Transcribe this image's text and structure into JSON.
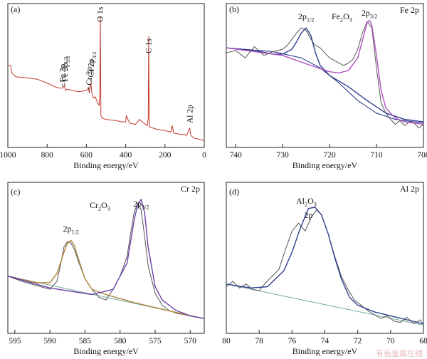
{
  "chart_data": [
    {
      "type": "line",
      "panel": "(a)",
      "xlabel": "Binding energy/eV",
      "xlim": [
        1000,
        0
      ],
      "xticks": [
        1000,
        800,
        600,
        400,
        200,
        0
      ],
      "grid": false,
      "color": "#c0392b",
      "series": [
        {
          "x": [
            1000,
            985,
            980,
            960,
            900,
            850,
            800,
            760,
            740,
            720,
            712,
            706,
            700,
            640,
            600,
            590,
            585,
            577,
            572,
            565,
            555,
            545,
            535,
            532,
            529,
            526,
            520,
            500,
            450,
            420,
            400,
            397,
            380,
            350,
            330,
            300,
            290,
            285,
            283,
            280,
            260,
            240,
            200,
            170,
            163,
            155,
            120,
            100,
            90,
            74,
            68,
            50,
            20,
            0
          ],
          "y": [
            0.62,
            0.62,
            0.56,
            0.53,
            0.52,
            0.51,
            0.48,
            0.45,
            0.44,
            0.44,
            0.46,
            0.42,
            0.43,
            0.41,
            0.42,
            0.44,
            0.4,
            0.48,
            0.4,
            0.36,
            0.37,
            0.33,
            0.3,
            0.4,
            1.0,
            0.22,
            0.2,
            0.19,
            0.18,
            0.17,
            0.17,
            0.22,
            0.16,
            0.15,
            0.19,
            0.15,
            0.14,
            0.2,
            0.85,
            0.13,
            0.12,
            0.11,
            0.1,
            0.09,
            0.14,
            0.08,
            0.07,
            0.07,
            0.06,
            0.12,
            0.06,
            0.04,
            0.03,
            0.02
          ]
        }
      ],
      "annotations": [
        {
          "label": "Fe 2p1/2",
          "main": "Fe 2p",
          "sub": "1/2",
          "x": 722
        },
        {
          "label": "Fe 2p3/2",
          "main": "Fe 2p",
          "sub": "3/2",
          "x": 710
        },
        {
          "label": "Cr 2p1/2",
          "main": "Cr 2p",
          "sub": "1/2",
          "x": 587
        },
        {
          "label": "Cr 2p3/2",
          "main": "Cr 2p",
          "sub": "3/2",
          "x": 577
        },
        {
          "label": "O 1s",
          "x": 531
        },
        {
          "label": "C 1s",
          "x": 285
        },
        {
          "label": "Al 2p",
          "x": 74
        }
      ]
    },
    {
      "type": "line",
      "panel": "(b)",
      "title": "Fe 2p",
      "xlabel": "Binding energy/eV",
      "xlim": [
        742,
        700
      ],
      "xticks": [
        740,
        730,
        720,
        710,
        700
      ],
      "grid": false,
      "compound": {
        "main": "Fe",
        "sub": "2",
        "tail": "O",
        "sub2": "3"
      },
      "peak_labels": [
        {
          "main": "2p",
          "sub": "1/2",
          "x": 725
        },
        {
          "main": "2p",
          "sub": "3/2",
          "x": 711.5
        }
      ],
      "series": [
        {
          "role": "raw",
          "color": "#555555",
          "x": [
            742,
            740,
            738,
            736,
            734,
            732,
            730,
            729,
            728,
            727,
            726,
            725,
            724,
            723,
            722,
            721,
            720,
            719,
            718,
            717,
            716,
            715,
            714,
            713,
            712,
            711,
            710,
            709,
            708,
            707,
            706,
            705,
            704,
            703,
            702,
            701,
            700
          ],
          "y": [
            0.72,
            0.74,
            0.68,
            0.77,
            0.7,
            0.73,
            0.75,
            0.78,
            0.83,
            0.88,
            0.92,
            0.9,
            0.83,
            0.78,
            0.76,
            0.72,
            0.68,
            0.66,
            0.64,
            0.62,
            0.64,
            0.67,
            0.75,
            0.88,
            0.97,
            0.92,
            0.6,
            0.32,
            0.24,
            0.19,
            0.15,
            0.18,
            0.14,
            0.17,
            0.16,
            0.12,
            0.15
          ]
        },
        {
          "role": "fit",
          "name": "2p1/2",
          "color": "#2e3f8f",
          "x": [
            742,
            736,
            732,
            730,
            728,
            727,
            726,
            725,
            724,
            723,
            722,
            720,
            716,
            712,
            708,
            704,
            700
          ],
          "y": [
            0.76,
            0.74,
            0.71,
            0.71,
            0.75,
            0.81,
            0.88,
            0.92,
            0.86,
            0.72,
            0.62,
            0.54,
            0.45,
            0.34,
            0.24,
            0.19,
            0.17
          ]
        },
        {
          "role": "fit",
          "name": "2p3/2",
          "color": "#b050c0",
          "x": [
            742,
            730,
            724,
            720,
            718,
            716,
            714,
            713,
            712,
            711.5,
            711,
            710,
            709,
            708,
            706,
            704,
            700
          ],
          "y": [
            0.76,
            0.7,
            0.62,
            0.57,
            0.56,
            0.58,
            0.68,
            0.82,
            0.96,
            0.98,
            0.94,
            0.7,
            0.42,
            0.28,
            0.2,
            0.17,
            0.15
          ]
        },
        {
          "role": "baseline",
          "color": "#2e3f8f",
          "x": [
            742,
            732,
            726,
            722,
            718,
            714,
            710,
            706,
            702,
            700
          ],
          "y": [
            0.76,
            0.73,
            0.68,
            0.6,
            0.48,
            0.34,
            0.24,
            0.19,
            0.17,
            0.16
          ]
        }
      ]
    },
    {
      "type": "line",
      "panel": "(c)",
      "title": "Cr 2p",
      "xlabel": "Binding energy/eV",
      "xlim": [
        596,
        568
      ],
      "xticks": [
        595,
        590,
        585,
        580,
        575,
        570
      ],
      "grid": false,
      "compound": {
        "main": "Cr",
        "sub": "2",
        "tail": "O",
        "sub2": "3"
      },
      "peak_labels": [
        {
          "main": "2p",
          "sub": "1/2",
          "x": 587
        },
        {
          "main": "2p",
          "sub": "3/2",
          "x": 577
        }
      ],
      "series": [
        {
          "role": "raw",
          "color": "#555555",
          "x": [
            596,
            594,
            592,
            590,
            589,
            588.5,
            588,
            587.5,
            587,
            586.5,
            586,
            585,
            584,
            583,
            582,
            581,
            580,
            579,
            578.5,
            578,
            577.5,
            577,
            576.5,
            576,
            575,
            574,
            573,
            572,
            571,
            570,
            569,
            568
          ],
          "y": [
            0.4,
            0.36,
            0.33,
            0.3,
            0.36,
            0.48,
            0.62,
            0.66,
            0.65,
            0.6,
            0.52,
            0.38,
            0.3,
            0.24,
            0.22,
            0.3,
            0.4,
            0.55,
            0.72,
            0.88,
            0.95,
            0.9,
            0.7,
            0.48,
            0.27,
            0.18,
            0.14,
            0.12,
            0.11,
            0.1,
            0.09,
            0.08
          ]
        },
        {
          "role": "fit",
          "name": "2p1/2",
          "color": "#b0853a",
          "x": [
            596,
            592,
            590,
            589,
            588,
            587.5,
            587,
            586.5,
            586,
            585,
            584,
            582,
            578,
            574,
            570,
            568
          ],
          "y": [
            0.4,
            0.35,
            0.35,
            0.42,
            0.58,
            0.65,
            0.67,
            0.63,
            0.54,
            0.38,
            0.3,
            0.26,
            0.2,
            0.15,
            0.1,
            0.08
          ]
        },
        {
          "role": "fit",
          "name": "2p3/2",
          "color": "#6a3fa8",
          "x": [
            596,
            590,
            584,
            581,
            579,
            578,
            577.5,
            577,
            576.5,
            576,
            575,
            574,
            572,
            570,
            568
          ],
          "y": [
            0.4,
            0.31,
            0.26,
            0.3,
            0.5,
            0.82,
            0.94,
            0.98,
            0.88,
            0.62,
            0.32,
            0.22,
            0.14,
            0.1,
            0.08
          ]
        },
        {
          "role": "baseline",
          "color": "#7fb0a8",
          "x": [
            596,
            568
          ],
          "y": [
            0.4,
            0.08
          ]
        }
      ]
    },
    {
      "type": "line",
      "panel": "(d)",
      "title": "Al 2p",
      "xlabel": "Binding energy/eV",
      "xlim": [
        80,
        68
      ],
      "xticks": [
        80,
        78,
        76,
        74,
        72,
        70,
        68
      ],
      "grid": false,
      "compound": {
        "main": "Al",
        "sub": "2",
        "tail": "O",
        "sub2": "3"
      },
      "peak_labels": [
        {
          "main": "2p",
          "sub": "",
          "x": 75
        }
      ],
      "series": [
        {
          "role": "raw",
          "color": "#555555",
          "x": [
            80,
            79.6,
            79.2,
            78.8,
            78.4,
            78,
            77.6,
            77.2,
            76.8,
            76.4,
            76,
            75.6,
            75.2,
            74.8,
            74.5,
            74.2,
            73.8,
            73.4,
            73,
            72.6,
            72.2,
            71.8,
            71.4,
            71,
            70.6,
            70.2,
            69.8,
            69.4,
            69,
            68.6,
            68.2,
            68
          ],
          "y": [
            0.32,
            0.36,
            0.31,
            0.34,
            0.3,
            0.29,
            0.35,
            0.4,
            0.45,
            0.6,
            0.74,
            0.8,
            0.74,
            0.85,
            0.9,
            0.86,
            0.72,
            0.55,
            0.4,
            0.3,
            0.22,
            0.18,
            0.14,
            0.11,
            0.08,
            0.1,
            0.06,
            0.05,
            0.09,
            0.04,
            0.07,
            0.03
          ]
        },
        {
          "role": "fit",
          "name": "2p",
          "color": "#2e3f8f",
          "x": [
            80,
            78.5,
            77.5,
            76.5,
            76,
            75.5,
            75,
            74.6,
            74.2,
            73.8,
            73.4,
            73,
            72.5,
            72,
            71,
            70,
            69,
            68
          ],
          "y": [
            0.34,
            0.31,
            0.32,
            0.44,
            0.58,
            0.76,
            0.91,
            0.92,
            0.86,
            0.72,
            0.54,
            0.38,
            0.24,
            0.18,
            0.13,
            0.1,
            0.07,
            0.04
          ]
        },
        {
          "role": "baseline",
          "color": "#7fb0a8",
          "x": [
            80,
            68
          ],
          "y": [
            0.34,
            0.03
          ]
        }
      ]
    }
  ],
  "watermark": {
    "text": "有色金属在线"
  }
}
